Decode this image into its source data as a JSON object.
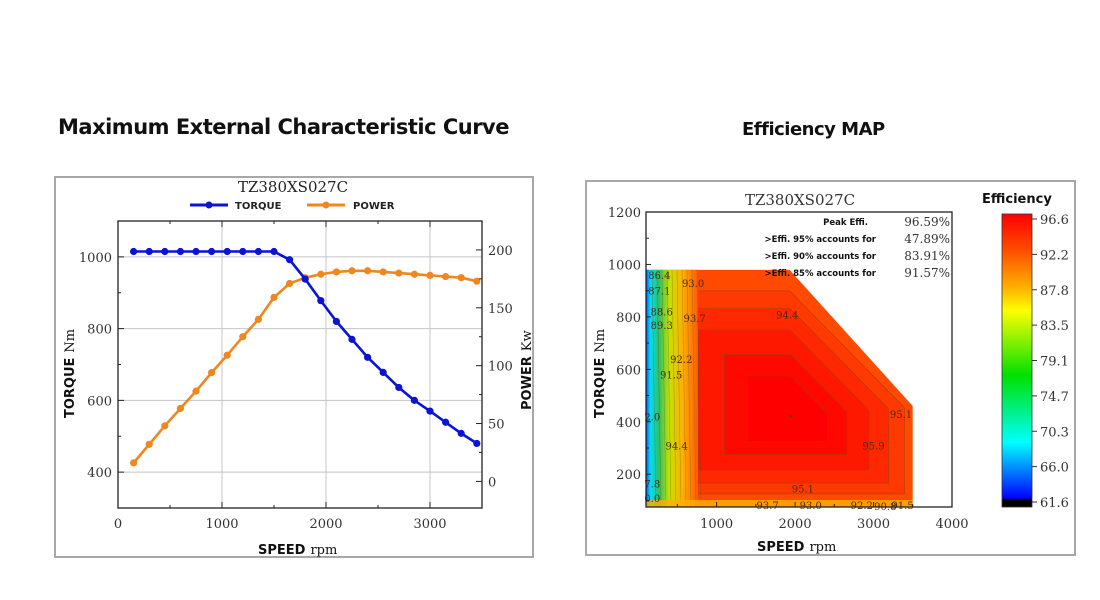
{
  "page": {
    "left_title": "Maximum External Characteristic Curve",
    "right_title": "Efficiency MAP"
  },
  "chart_data": [
    {
      "type": "line",
      "title": "TZ380XS027C",
      "xlabel": "SPEED",
      "xlabel_unit": "rpm",
      "ylabel": "TORQUE",
      "ylabel_unit": "Nm",
      "y2label": "POWER",
      "y2label_unit": "Kw",
      "xlim": [
        0,
        3500
      ],
      "ylim": [
        300,
        1100
      ],
      "y2lim": [
        -23,
        225
      ],
      "xticks": [
        "0",
        "1000",
        "2000",
        "3000"
      ],
      "xtick_values": [
        0,
        1000,
        2000,
        3000
      ],
      "yticks": [
        "400",
        "600",
        "800",
        "1000"
      ],
      "ytick_values": [
        400,
        600,
        800,
        1000
      ],
      "y2ticks": [
        "0",
        "50",
        "100",
        "150",
        "200"
      ],
      "y2tick_values": [
        0,
        50,
        100,
        150,
        200
      ],
      "grid": true,
      "legend_position": "top-center",
      "x": [
        150,
        300,
        450,
        600,
        750,
        900,
        1050,
        1200,
        1350,
        1500,
        1650,
        1800,
        1950,
        2100,
        2250,
        2400,
        2550,
        2700,
        2850,
        3000,
        3150,
        3300,
        3450
      ],
      "series": [
        {
          "name": "TORQUE",
          "axis": "left",
          "color": "#0a14d2",
          "values": [
            1015,
            1015,
            1015,
            1015,
            1015,
            1015,
            1015,
            1015,
            1015,
            1015,
            992,
            938,
            878,
            820,
            770,
            720,
            678,
            636,
            600,
            570,
            539,
            508,
            480
          ]
        },
        {
          "name": "POWER",
          "axis": "right",
          "color": "#f0861e",
          "values": [
            16,
            32,
            48,
            63,
            78,
            94,
            109,
            125,
            140,
            159,
            171,
            176,
            179,
            181,
            182,
            182,
            181,
            180,
            179,
            178,
            177,
            176,
            173
          ]
        }
      ]
    },
    {
      "type": "heatmap",
      "title": "TZ380XS027C",
      "xlabel": "SPEED",
      "xlabel_unit": "rpm",
      "ylabel": "TORQUE",
      "ylabel_unit": "Nm",
      "xlim": [
        100,
        4000
      ],
      "ylim": [
        75,
        1200
      ],
      "xticks": [
        "1000",
        "2000",
        "3000",
        "4000"
      ],
      "xtick_values": [
        1000,
        2000,
        3000,
        4000
      ],
      "yticks": [
        "200",
        "400",
        "600",
        "800",
        "1000",
        "1200"
      ],
      "ytick_values": [
        200,
        400,
        600,
        800,
        1000,
        1200
      ],
      "envelope": [
        [
          100,
          980
        ],
        [
          1930,
          980
        ],
        [
          3500,
          460
        ],
        [
          3500,
          75
        ],
        [
          100,
          75
        ]
      ],
      "peak_point": [
        1950,
        420
      ],
      "colorbar": {
        "title": "Efficiency",
        "ticks": [
          "96.6",
          "92.2",
          "87.8",
          "83.5",
          "79.1",
          "74.7",
          "70.3",
          "66.0",
          "61.6"
        ],
        "tick_values": [
          96.6,
          92.2,
          87.8,
          83.5,
          79.1,
          74.7,
          70.3,
          66.0,
          61.6
        ],
        "stops": [
          "#ff0000",
          "#ff6a00",
          "#ffff00",
          "#00e000",
          "#00ffff",
          "#0070ff",
          "#0000ff",
          "#000000"
        ]
      },
      "stats": [
        {
          "label": "Peak Effi.",
          "value": "96.59%"
        },
        {
          "label": ">Effi. 95% accounts for",
          "value": "47.89%"
        },
        {
          "label": ">Effi. 90% accounts for",
          "value": "83.91%"
        },
        {
          "label": ">Effi. 85% accounts for",
          "value": "91.57%"
        }
      ],
      "contour_labels": [
        {
          "text": "86.4",
          "speed": 270,
          "torque": 960
        },
        {
          "text": "87.1",
          "speed": 270,
          "torque": 900
        },
        {
          "text": "93.0",
          "speed": 700,
          "torque": 930
        },
        {
          "text": "88.6",
          "speed": 300,
          "torque": 820
        },
        {
          "text": "93.7",
          "speed": 720,
          "torque": 795
        },
        {
          "text": "89.3",
          "speed": 300,
          "torque": 770
        },
        {
          "text": "94.4",
          "speed": 1900,
          "torque": 810
        },
        {
          "text": "92.2",
          "speed": 550,
          "torque": 640
        },
        {
          "text": "91.5",
          "speed": 420,
          "torque": 580
        },
        {
          "text": "2.0",
          "speed": 180,
          "torque": 420
        },
        {
          "text": "95.1",
          "speed": 3350,
          "torque": 430
        },
        {
          "text": "94.4",
          "speed": 490,
          "torque": 310
        },
        {
          "text": "95.9",
          "speed": 3000,
          "torque": 310
        },
        {
          "text": "7.8",
          "speed": 180,
          "torque": 165
        },
        {
          "text": "95.1",
          "speed": 2100,
          "torque": 145
        },
        {
          "text": "0.0",
          "speed": 180,
          "torque": 110
        },
        {
          "text": "93.7",
          "speed": 1650,
          "torque": 83
        },
        {
          "text": "93.0",
          "speed": 2200,
          "torque": 83
        },
        {
          "text": "92.2",
          "speed": 2850,
          "torque": 83
        },
        {
          "text": "90.8",
          "speed": 3150,
          "torque": 78
        },
        {
          "text": "91.5",
          "speed": 3370,
          "torque": 83
        }
      ]
    }
  ]
}
